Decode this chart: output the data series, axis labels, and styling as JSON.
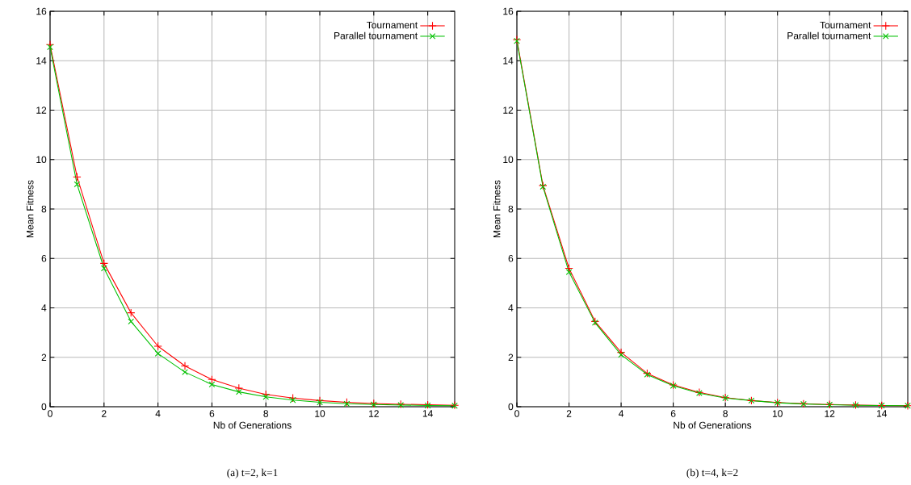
{
  "chart_data": [
    {
      "type": "line",
      "xlabel": "Nb of Generations",
      "ylabel": "Mean Fitness",
      "annotations": [
        "(a) t=2, k=1"
      ],
      "x": [
        0,
        1,
        2,
        3,
        4,
        5,
        6,
        7,
        8,
        9,
        10,
        11,
        12,
        13,
        14,
        15
      ],
      "xlim": [
        0,
        15
      ],
      "ylim": [
        0,
        16
      ],
      "xticks": [
        0,
        2,
        4,
        6,
        8,
        10,
        12,
        14
      ],
      "yticks": [
        0,
        2,
        4,
        6,
        8,
        10,
        12,
        14,
        16
      ],
      "grid": true,
      "legend": "top right",
      "series": [
        {
          "name": "Tournament",
          "color": "#ff0000",
          "marker": "plus",
          "values": [
            14.65,
            9.3,
            5.8,
            3.8,
            2.45,
            1.65,
            1.1,
            0.75,
            0.5,
            0.35,
            0.25,
            0.18,
            0.13,
            0.1,
            0.08,
            0.06
          ]
        },
        {
          "name": "Parallel tournament",
          "color": "#00c000",
          "marker": "cross",
          "values": [
            14.55,
            9.0,
            5.6,
            3.45,
            2.15,
            1.4,
            0.9,
            0.6,
            0.4,
            0.27,
            0.18,
            0.12,
            0.09,
            0.07,
            0.05,
            0.04
          ]
        }
      ]
    },
    {
      "type": "line",
      "xlabel": "Nb of Generations",
      "ylabel": "Mean Fitness",
      "annotations": [
        "(b) t=4, k=2"
      ],
      "x": [
        0,
        1,
        2,
        3,
        4,
        5,
        6,
        7,
        8,
        9,
        10,
        11,
        12,
        13,
        14,
        15
      ],
      "xlim": [
        0,
        15
      ],
      "ylim": [
        0,
        16
      ],
      "xticks": [
        0,
        2,
        4,
        6,
        8,
        10,
        12,
        14
      ],
      "yticks": [
        0,
        2,
        4,
        6,
        8,
        10,
        12,
        14,
        16
      ],
      "grid": true,
      "legend": "top right",
      "series": [
        {
          "name": "Tournament",
          "color": "#ff0000",
          "marker": "plus",
          "values": [
            14.85,
            8.95,
            5.6,
            3.45,
            2.2,
            1.35,
            0.88,
            0.58,
            0.37,
            0.25,
            0.17,
            0.12,
            0.09,
            0.07,
            0.05,
            0.04
          ]
        },
        {
          "name": "Parallel tournament",
          "color": "#00c000",
          "marker": "cross",
          "values": [
            14.8,
            8.9,
            5.45,
            3.4,
            2.1,
            1.3,
            0.85,
            0.55,
            0.35,
            0.25,
            0.16,
            0.11,
            0.08,
            0.06,
            0.05,
            0.04
          ]
        }
      ]
    }
  ]
}
